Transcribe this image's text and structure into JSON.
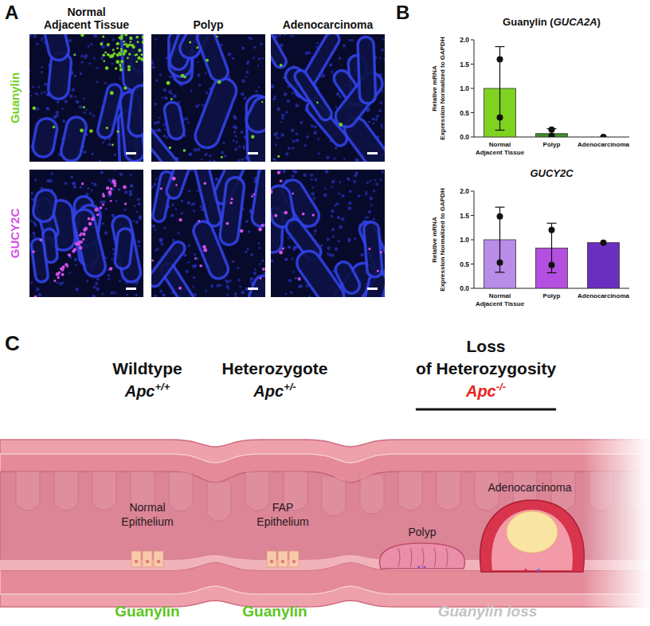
{
  "panel_a": {
    "letter": "A",
    "columns": [
      "Normal Adjacent Tissue",
      "Polyp",
      "Adenocarcinoma"
    ],
    "rows": [
      {
        "label": "Guanylin",
        "color": "#6fd21e"
      },
      {
        "label": "GUCY2C",
        "color": "#d24fe6"
      }
    ]
  },
  "panel_b": {
    "letter": "B"
  },
  "chart_data": [
    {
      "type": "bar",
      "title": "Guanylin (GUCA2A)",
      "y_label": "Relative mRNA Expression Normalized to GAPDH",
      "categories": [
        "Normal Adjacent Tissue",
        "Polyp",
        "Adenocarcinoma"
      ],
      "values": [
        1.0,
        0.07,
        0.0
      ],
      "errors": [
        0.86,
        0.1,
        null
      ],
      "points": [
        [
          1.6,
          0.4
        ],
        [
          0.02,
          0.15
        ],
        [
          0.0
        ]
      ],
      "colors": [
        "#7ed321",
        "#3f8f2a",
        "#1f5a12"
      ],
      "ylim": [
        0,
        2
      ],
      "yticks": [
        {
          "value": 0,
          "label": "0.0"
        },
        {
          "value": 0.5,
          "label": "0.5"
        },
        {
          "value": 1,
          "label": "1.0"
        },
        {
          "value": 1.5,
          "label": "1.5"
        },
        {
          "value": 2,
          "label": "2.0"
        }
      ],
      "grid": false
    },
    {
      "type": "bar",
      "title": "GUCY2C",
      "y_label": "Relative mRNA Expression Normalized to GAPDH",
      "categories": [
        "Normal Adjacent Tissue",
        "Polyp",
        "Adenocarcinoma"
      ],
      "values": [
        1.0,
        0.83,
        0.94
      ],
      "errors": [
        0.67,
        0.51,
        null
      ],
      "points": [
        [
          1.48,
          0.53
        ],
        [
          1.2,
          0.48
        ],
        [
          0.94
        ]
      ],
      "colors": [
        "#b98ce8",
        "#b44fe0",
        "#6b2fc0"
      ],
      "ylim": [
        0,
        2
      ],
      "yticks": [
        {
          "value": 0,
          "label": "0.0"
        },
        {
          "value": 0.5,
          "label": "0.5"
        },
        {
          "value": 1,
          "label": "1.0"
        },
        {
          "value": 1.5,
          "label": "1.5"
        },
        {
          "value": 2,
          "label": "2.0"
        }
      ],
      "grid": false
    }
  ],
  "panel_c": {
    "letter": "C",
    "genotypes": [
      {
        "title": "Wildtype",
        "gene": "Apc",
        "genotype": "+/+",
        "color": "#111111"
      },
      {
        "title": "Heterozygote",
        "gene": "Apc",
        "genotype": "+/-",
        "color": "#111111"
      },
      {
        "title": "Loss of Heterozygosity",
        "gene": "Apc",
        "genotype": "-/-",
        "color": "#e8221b"
      }
    ],
    "tissues": [
      "Normal Epithelium",
      "FAP Epithelium",
      "Polyp",
      "Adenocarcinoma"
    ],
    "status": [
      {
        "label": "Guanylin",
        "color": "#5cc51d"
      },
      {
        "label": "Guanylin",
        "color": "#5cc51d"
      },
      {
        "label": "Guanylin loss",
        "color": "#c4c4c4"
      }
    ]
  }
}
